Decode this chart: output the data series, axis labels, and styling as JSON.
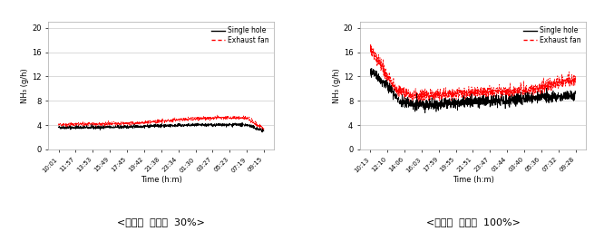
{
  "chart1": {
    "title": "<환기팜  가동률  30%>",
    "xtick_labels": [
      "10:01",
      "11:57",
      "13:53",
      "15:49",
      "17:45",
      "19:42",
      "21:38",
      "23:34",
      "01:30",
      "03:27",
      "05:23",
      "07:19",
      "09:15"
    ],
    "ytick_labels": [
      "0",
      "4",
      "8",
      "12",
      "16",
      "20"
    ],
    "yticks": [
      0,
      4,
      8,
      12,
      16,
      20
    ],
    "ylim": [
      0,
      21
    ],
    "ylabel": "NH₃ (g/h)",
    "xlabel": "Time (h:m)",
    "single_hole_base": 3.6,
    "single_hole_trend": [
      0.0,
      0.0,
      0.0,
      0.05,
      0.1,
      0.2,
      0.3,
      0.35,
      0.4,
      0.42,
      0.44,
      0.44,
      -0.6
    ],
    "exhaust_fan_base": 4.05,
    "exhaust_fan_trend": [
      0.0,
      0.05,
      0.1,
      0.15,
      0.2,
      0.4,
      0.6,
      0.85,
      1.0,
      1.1,
      1.2,
      1.1,
      -0.7
    ],
    "single_hole_color": "#000000",
    "exhaust_fan_color": "#FF0000",
    "n_points": 1300
  },
  "chart2": {
    "title": "<환기팜  가동률  100%>",
    "xtick_labels": [
      "10:13",
      "12:10",
      "14:06",
      "16:03",
      "17:59",
      "19:55",
      "21:51",
      "23:47",
      "01:44",
      "03:40",
      "05:36",
      "07:32",
      "09:28"
    ],
    "ytick_labels": [
      "0",
      "4",
      "8",
      "12",
      "16",
      "20"
    ],
    "yticks": [
      0,
      4,
      8,
      12,
      16,
      20
    ],
    "ylim": [
      0,
      21
    ],
    "ylabel": "NH₃ (g/h)",
    "xlabel": "Time (h:m)",
    "single_hole_color": "#000000",
    "exhaust_fan_color": "#FF0000",
    "n_points": 1300
  },
  "legend_single": "Single hole",
  "legend_exhaust": "Exhaust fan",
  "bg_color": "#ffffff",
  "grid_color": "#cccccc"
}
